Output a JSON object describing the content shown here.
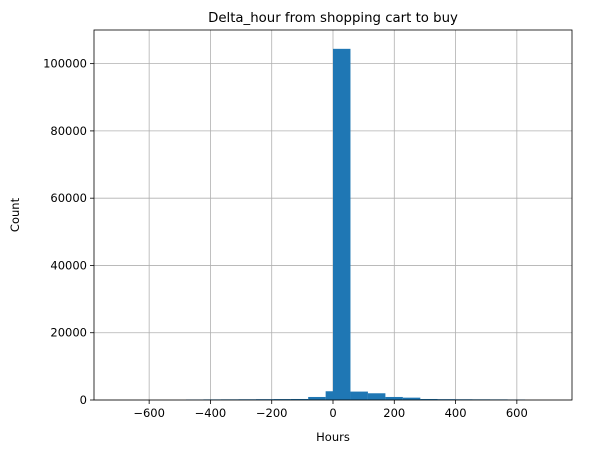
{
  "chart_data": {
    "type": "bar",
    "title": "Delta_hour from shopping cart to buy",
    "xlabel": "Hours",
    "ylabel": "Count",
    "xlim": [
      -780,
      780
    ],
    "ylim": [
      0,
      110000
    ],
    "grid": true,
    "color": "#1f77b4",
    "xticks": [
      -600,
      -400,
      -200,
      0,
      200,
      400,
      600
    ],
    "xtick_labels": [
      "−600",
      "−400",
      "−200",
      "0",
      "200",
      "400",
      "600"
    ],
    "yticks": [
      0,
      20000,
      40000,
      60000,
      80000,
      100000
    ],
    "ytick_labels": [
      "0",
      "20000",
      "40000",
      "60000",
      "80000",
      "100000"
    ],
    "bin_width": 57,
    "bins": [
      {
        "x0": -480,
        "value": 150
      },
      {
        "x0": -423,
        "value": 180
      },
      {
        "x0": -366,
        "value": 200
      },
      {
        "x0": -309,
        "value": 220
      },
      {
        "x0": -252,
        "value": 250
      },
      {
        "x0": -195,
        "value": 280
      },
      {
        "x0": -138,
        "value": 300
      },
      {
        "x0": -81,
        "value": 900
      },
      {
        "x0": -24,
        "value": 2600
      },
      {
        "x0": 0,
        "value": 104400
      },
      {
        "x0": 57,
        "value": 2500
      },
      {
        "x0": 114,
        "value": 2000
      },
      {
        "x0": 171,
        "value": 900
      },
      {
        "x0": 228,
        "value": 700
      },
      {
        "x0": 285,
        "value": 300
      },
      {
        "x0": 342,
        "value": 250
      },
      {
        "x0": 399,
        "value": 220
      },
      {
        "x0": 456,
        "value": 200
      },
      {
        "x0": 513,
        "value": 180
      },
      {
        "x0": 570,
        "value": 150
      }
    ]
  }
}
